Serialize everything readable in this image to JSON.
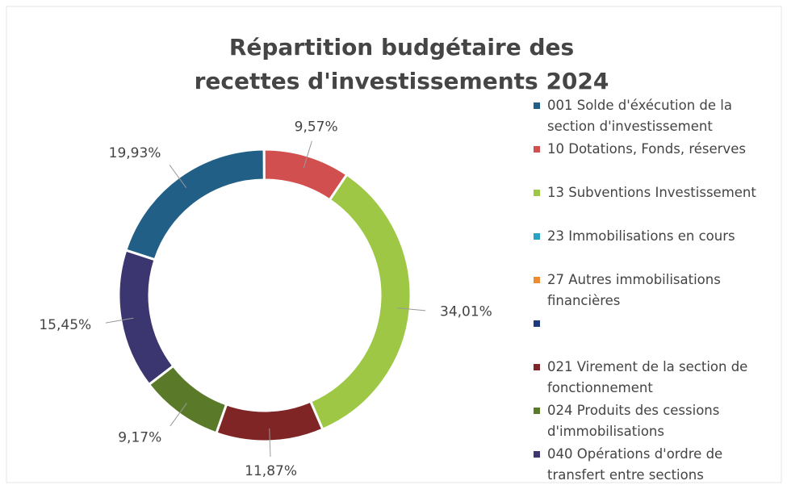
{
  "chart_data": {
    "type": "donut",
    "title": "Répartition budgétaire des recettes d'investissements 2024",
    "categories": [
      "001 Solde d'éxécution de la section d'investissement",
      "10 Dotations, Fonds, réserves",
      "13 Subventions Investissement",
      "23 Immobilisations en cours",
      "27 Autres immobilisations financières",
      null,
      "021 Virement de la section de fonctionnement",
      "024 Produits des cessions d'immobilisations",
      "040 Opérations d'ordre de transfert entre sections"
    ],
    "values": [
      19.93,
      9.57,
      34.01,
      0,
      0,
      0,
      11.87,
      9.17,
      15.45
    ],
    "value_labels": [
      "19,93%",
      "9,57%",
      "34,01%",
      null,
      null,
      null,
      "11,87%",
      "9,17%",
      "15,45%"
    ],
    "colors": [
      "#215f86",
      "#d1504f",
      "#9dc745",
      "#2aa2c4",
      "#ed8b30",
      "#1f3a7a",
      "#7f2525",
      "#5a7a2a",
      "#3b3570"
    ],
    "first_slice_angle": 288,
    "legend": "right"
  }
}
